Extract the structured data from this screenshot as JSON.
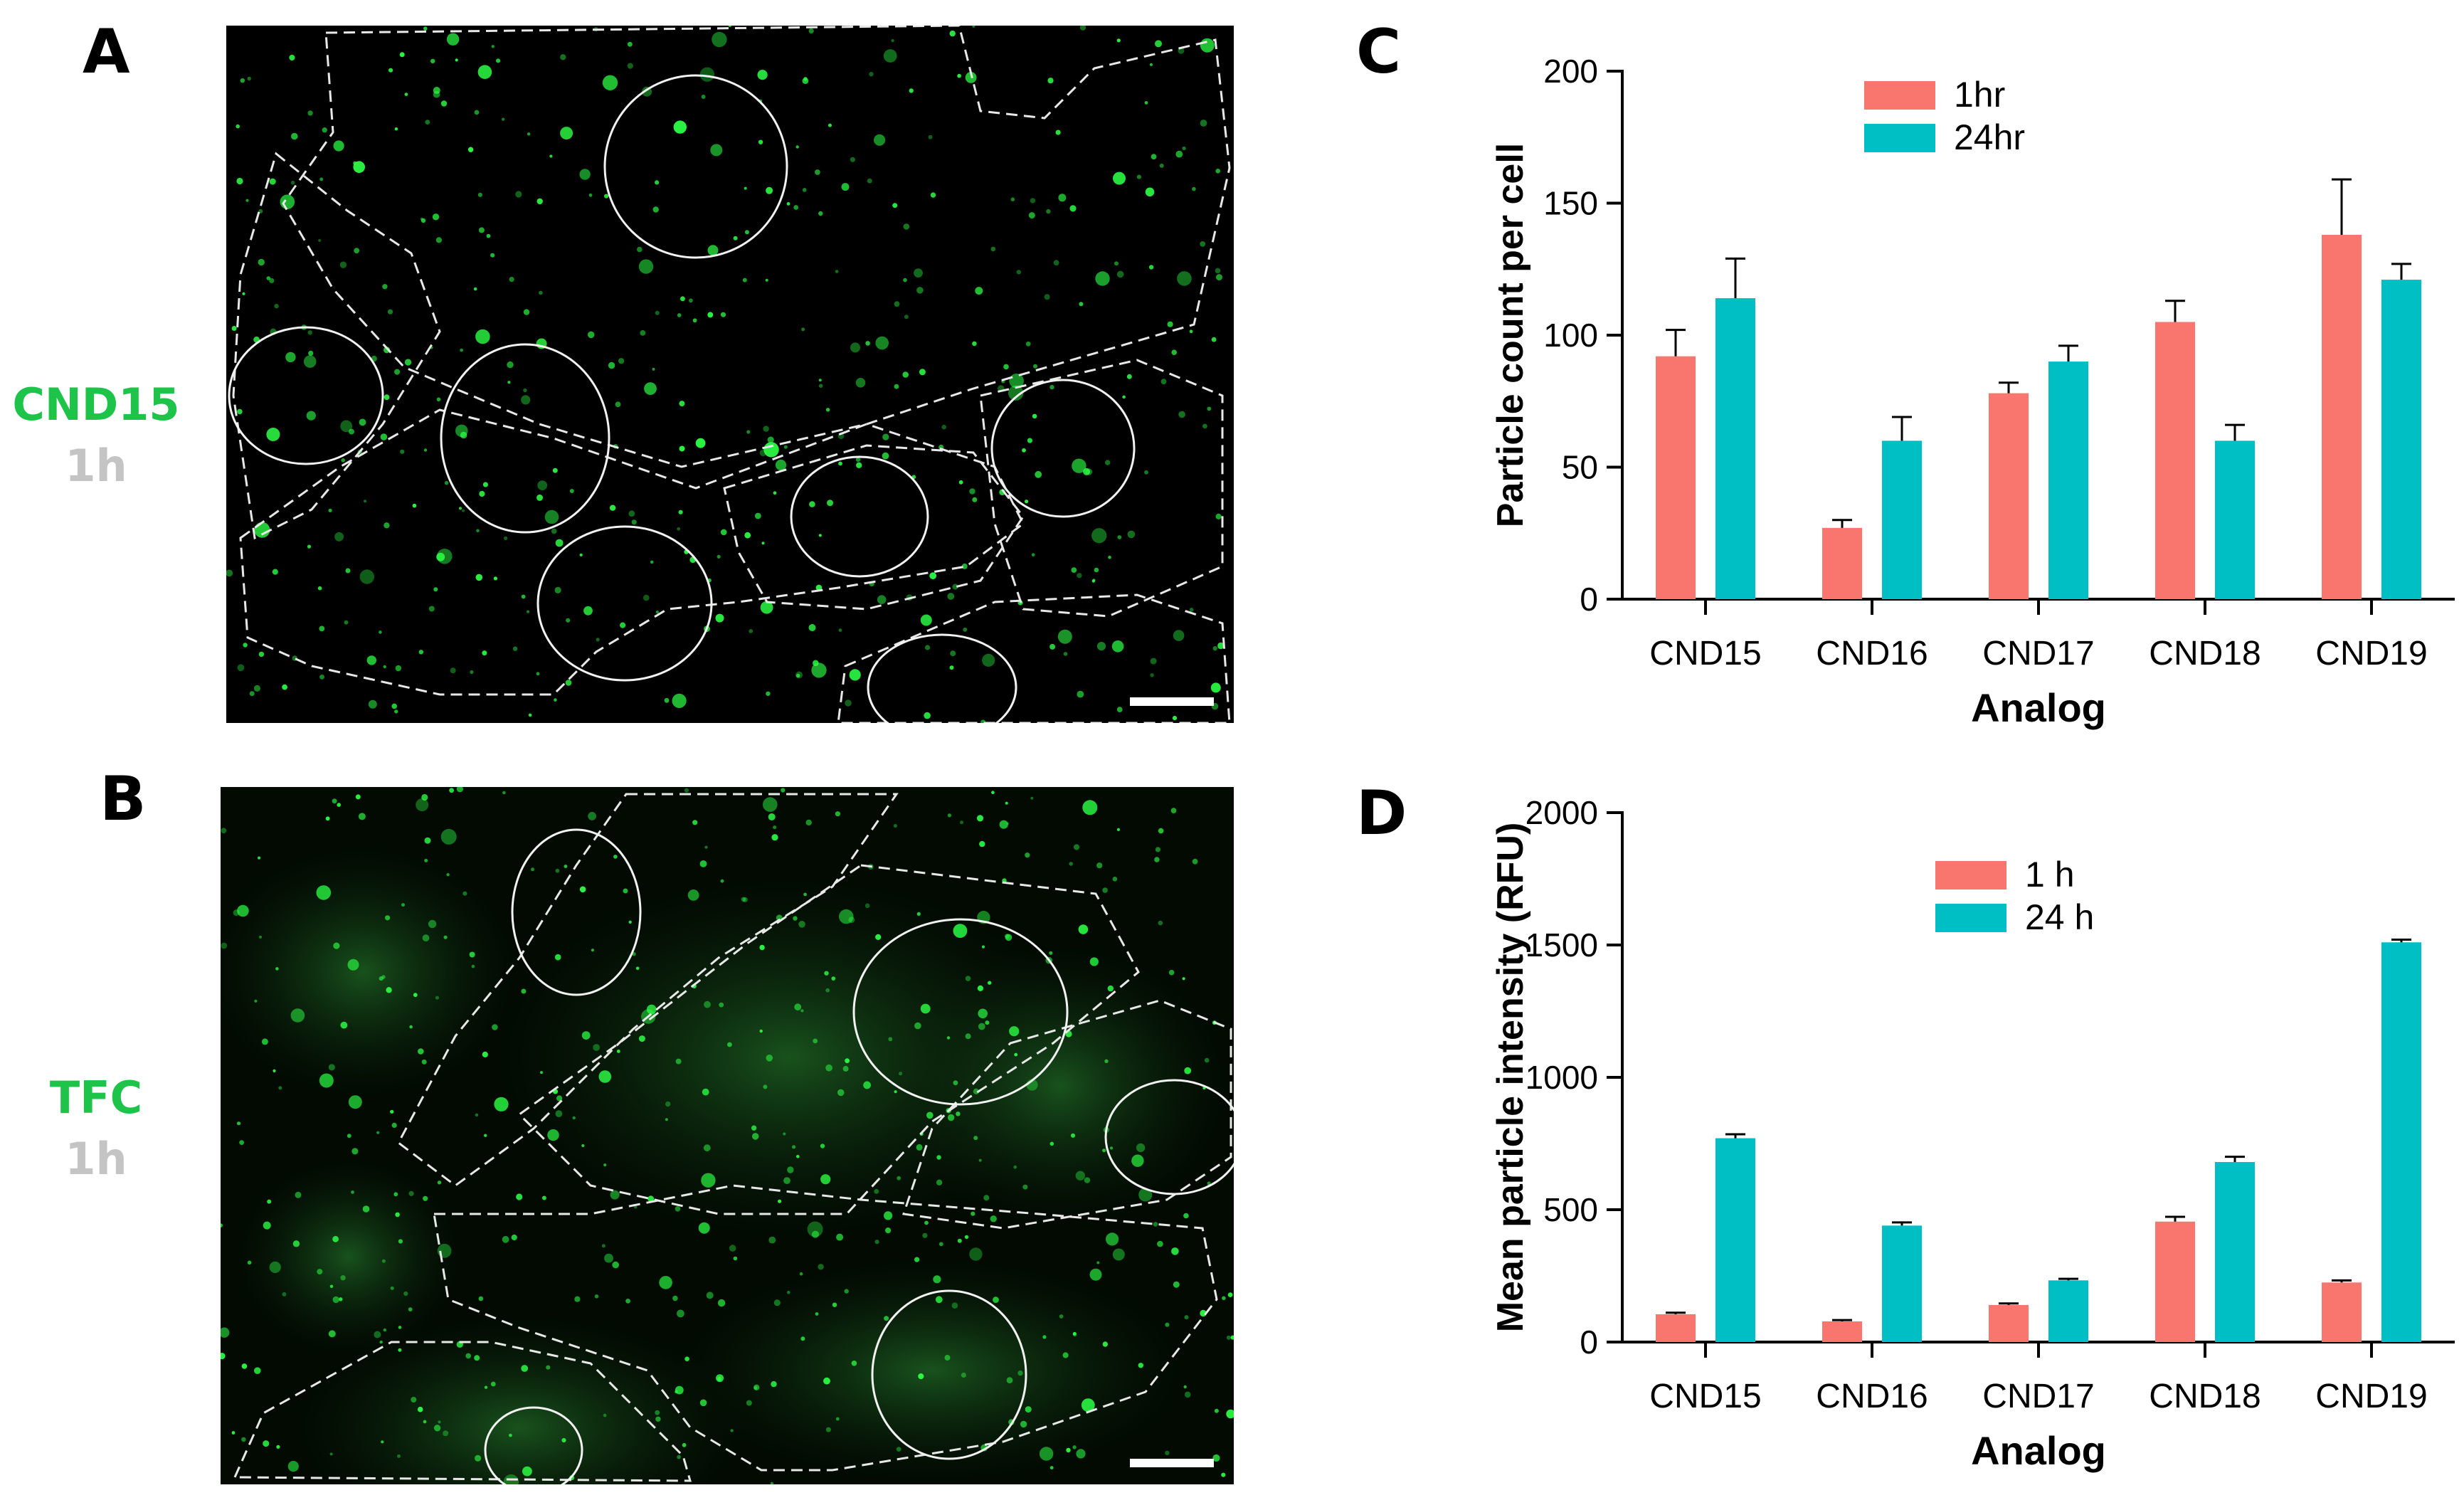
{
  "panels": {
    "A": {
      "letter": "A",
      "label_line1": "CND15",
      "label_line2": "1h"
    },
    "B": {
      "letter": "B",
      "label_line1": "TFC",
      "label_line2": "1h"
    },
    "C": {
      "letter": "C"
    },
    "D": {
      "letter": "D"
    }
  },
  "colors": {
    "label_green": "#1ec44a",
    "label_grey": "#c4c4c4",
    "series_1h": "#f8766d",
    "series_24h": "#00bfc4",
    "puncta": "#2cff45"
  },
  "chart_data": [
    {
      "type": "bar",
      "panel": "C",
      "categories": [
        "CND15",
        "CND16",
        "CND17",
        "CND18",
        "CND19"
      ],
      "series": [
        {
          "name": "1hr",
          "values": [
            92,
            27,
            78,
            105,
            138
          ],
          "errors": [
            10,
            3,
            4,
            8,
            21
          ]
        },
        {
          "name": "24hr",
          "values": [
            114,
            60,
            90,
            60,
            121
          ],
          "errors": [
            15,
            9,
            6,
            6,
            6
          ]
        }
      ],
      "xlabel": "Analog",
      "ylabel": "Particle count per cell",
      "ylim": [
        0,
        200
      ],
      "yticks": [
        "0",
        "50",
        "100",
        "150",
        "200"
      ],
      "legend": "top-center",
      "grid": false
    },
    {
      "type": "bar",
      "panel": "D",
      "categories": [
        "CND15",
        "CND16",
        "CND17",
        "CND18",
        "CND19"
      ],
      "series": [
        {
          "name": "1 h",
          "values": [
            105,
            78,
            140,
            455,
            225
          ],
          "errors": [
            6,
            5,
            6,
            18,
            8
          ]
        },
        {
          "name": "24 h",
          "values": [
            770,
            440,
            233,
            680,
            1510
          ],
          "errors": [
            15,
            12,
            6,
            20,
            10
          ]
        }
      ],
      "xlabel": "Analog",
      "ylabel": "Mean particle intensity (RFU)",
      "ylim": [
        0,
        2000
      ],
      "yticks": [
        "0",
        "500",
        "1000",
        "1500",
        "2000"
      ],
      "legend": "upper-center",
      "grid": false
    }
  ]
}
